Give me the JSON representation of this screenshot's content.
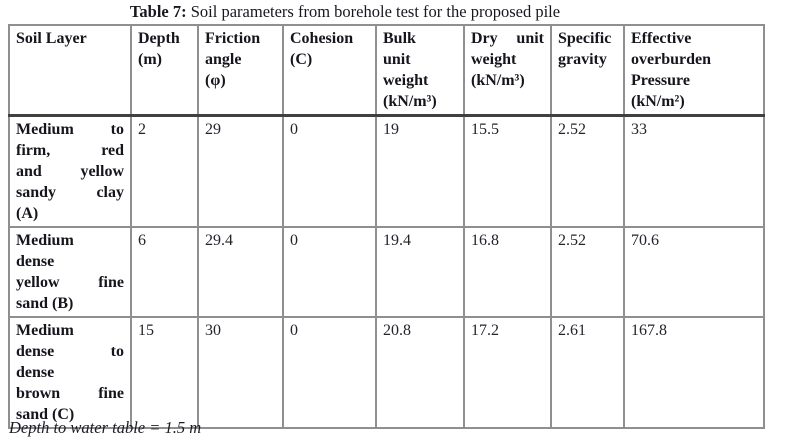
{
  "title": {
    "label": "Table 7:",
    "text": " Soil parameters from borehole test for the proposed pile"
  },
  "table": {
    "headers": [
      "Soil Layer",
      "Depth\n(m)",
      "Friction\nangle\n(φ)",
      "Cohesion\n(C)",
      "Bulk\nunit\nweight\n(kN/m³)",
      "Dry unit\nweight\n(kN/m³)",
      "Specific\ngravity",
      "Effective\noverburden\nPressure\n(kN/m²)"
    ],
    "rows": [
      {
        "soil_layer": "Medium to\nfirm, red\nand yellow\nsandy clay\n(A)",
        "depth_m": "2",
        "friction_angle": "29",
        "cohesion": "0",
        "bulk_unit_weight": "19",
        "dry_unit_weight": "15.5",
        "specific_gravity": "2.52",
        "effective_overburden_pressure": "33"
      },
      {
        "soil_layer": "Medium\ndense\nyellow fine\nsand (B)",
        "depth_m": "6",
        "friction_angle": "29.4",
        "cohesion": "0",
        "bulk_unit_weight": "19.4",
        "dry_unit_weight": "16.8",
        "specific_gravity": "2.52",
        "effective_overburden_pressure": "70.6"
      },
      {
        "soil_layer": "Medium\ndense to\ndense\nbrown fine\nsand (C)",
        "depth_m": "15",
        "friction_angle": "30",
        "cohesion": "0",
        "bulk_unit_weight": "20.8",
        "dry_unit_weight": "17.2",
        "specific_gravity": "2.61",
        "effective_overburden_pressure": "167.8"
      }
    ]
  },
  "footnote": "Depth to water table = 1.5 m"
}
